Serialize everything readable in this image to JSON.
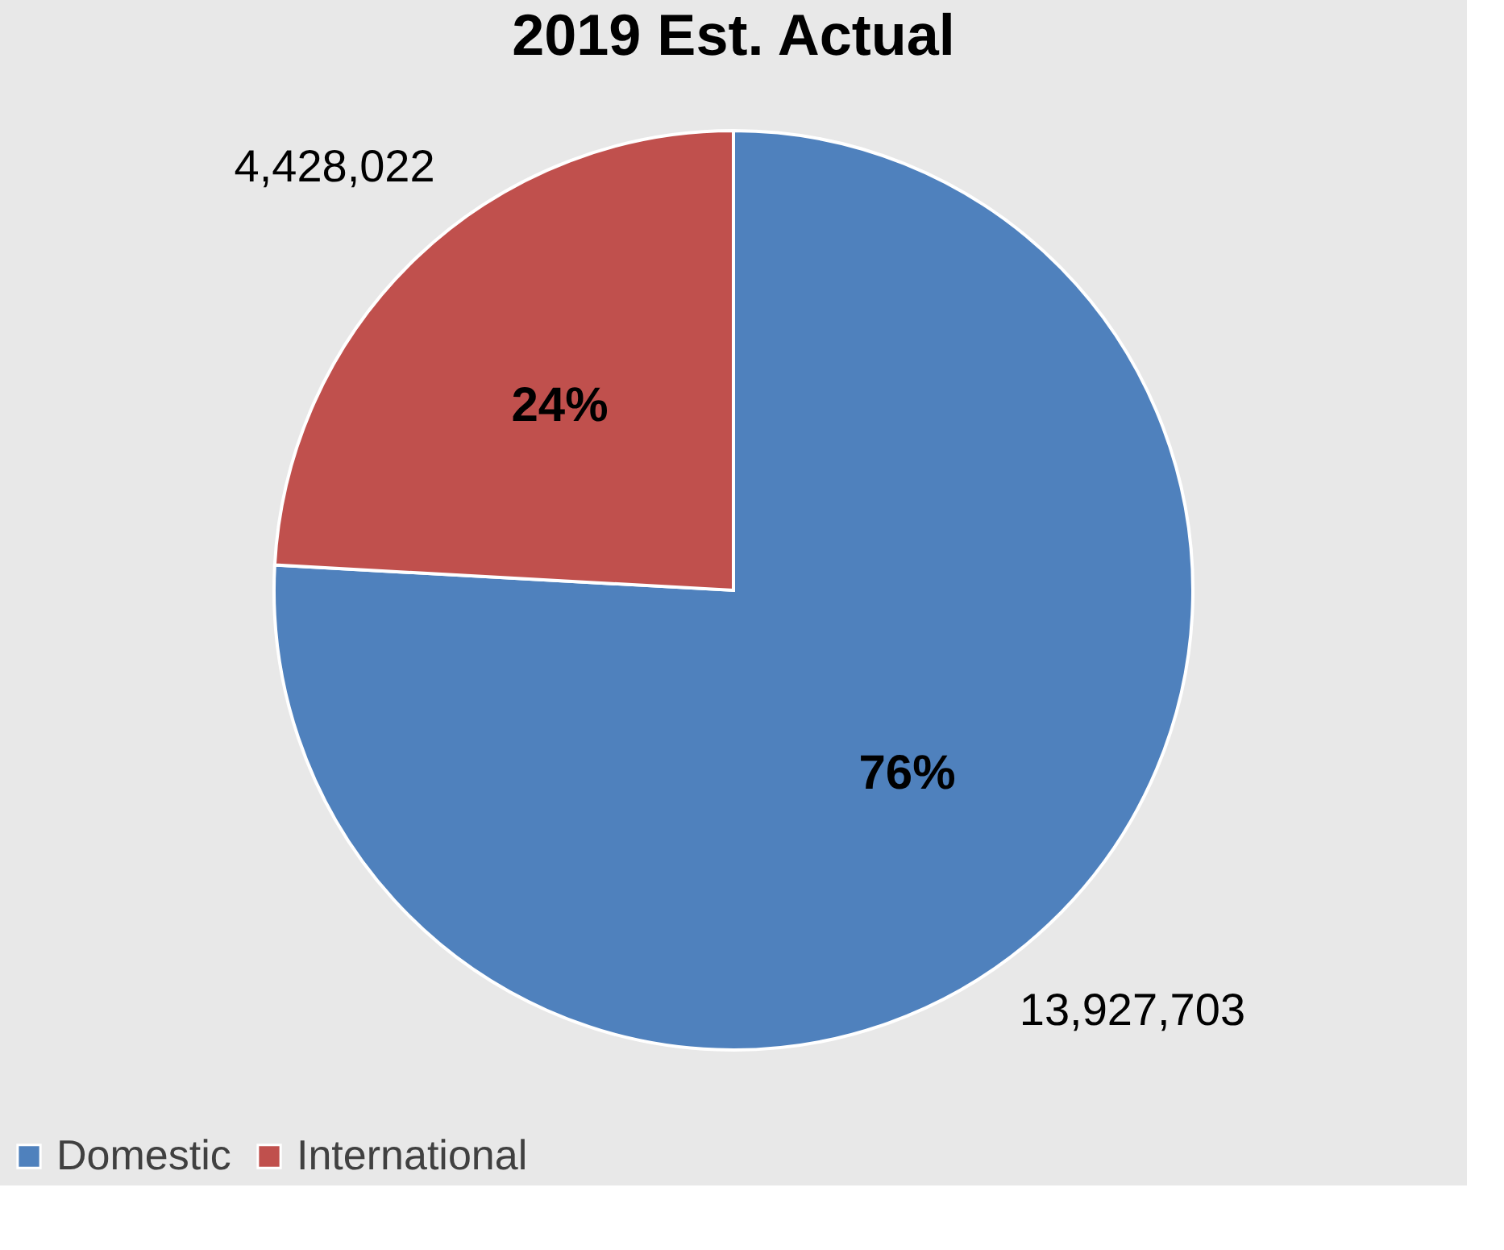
{
  "chart_data": {
    "type": "pie",
    "title": "2019 Est. Actual",
    "categories": [
      "Domestic",
      "International"
    ],
    "values": [
      13927703,
      4428022
    ],
    "colors": [
      "#4f81bd",
      "#c0504d"
    ],
    "value_labels": [
      "13,927,703",
      "4,428,022"
    ],
    "annotations": [
      "76%",
      "24%"
    ],
    "legend": "bottom"
  }
}
